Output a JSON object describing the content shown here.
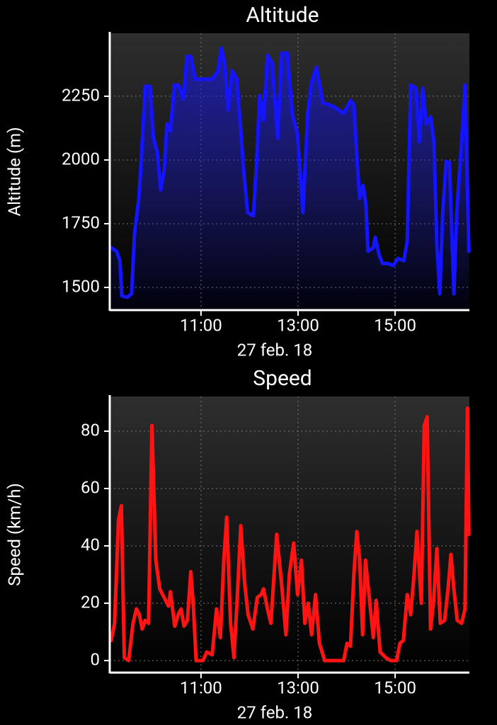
{
  "chart_data": [
    {
      "type": "line",
      "title": "Altitude",
      "ylabel": "Altitude (m)",
      "xlabel": "27 feb. 18",
      "fill": true,
      "grid": true,
      "xlim": [
        9.12,
        16.53
      ],
      "xticks": [
        {
          "value": 11,
          "label": "11:00"
        },
        {
          "value": 13,
          "label": "13:00"
        },
        {
          "value": 15,
          "label": "15:00"
        }
      ],
      "ylim": [
        1411,
        2497
      ],
      "yticks": [
        1500,
        1750,
        2000,
        2250
      ],
      "x": [
        9.15,
        9.26,
        9.33,
        9.37,
        9.48,
        9.57,
        9.63,
        9.72,
        9.77,
        9.85,
        9.95,
        10.02,
        10.1,
        10.17,
        10.24,
        10.3,
        10.37,
        10.45,
        10.53,
        10.64,
        10.71,
        10.79,
        10.88,
        11.23,
        11.35,
        11.42,
        11.49,
        11.56,
        11.64,
        11.74,
        11.88,
        11.96,
        12.08,
        12.14,
        12.21,
        12.29,
        12.37,
        12.47,
        12.58,
        12.66,
        12.78,
        12.88,
        12.99,
        13.1,
        13.2,
        13.28,
        13.38,
        13.51,
        13.72,
        13.94,
        14.08,
        14.15,
        14.22,
        14.27,
        14.34,
        14.4,
        14.44,
        14.55,
        14.59,
        14.67,
        14.74,
        14.85,
        14.96,
        15.06,
        15.18,
        15.25,
        15.32,
        15.43,
        15.5,
        15.57,
        15.64,
        15.73,
        15.8,
        15.86,
        15.92,
        15.98,
        16.05,
        16.12,
        16.21,
        16.27,
        16.37,
        16.44,
        16.52
      ],
      "series": [
        {
          "name": "Altitude",
          "color": "#1414ff",
          "values": [
            1656,
            1642,
            1605,
            1467,
            1461,
            1475,
            1711,
            1850,
            2003,
            2289,
            2289,
            2086,
            2031,
            1883,
            1961,
            2142,
            2114,
            2294,
            2294,
            2239,
            2406,
            2406,
            2317,
            2317,
            2350,
            2439,
            2378,
            2197,
            2350,
            2317,
            1961,
            1794,
            1781,
            1975,
            2253,
            2156,
            2411,
            2378,
            2086,
            2419,
            2419,
            2183,
            2100,
            1794,
            2183,
            2308,
            2364,
            2225,
            2211,
            2183,
            2233,
            2217,
            1989,
            1850,
            1900,
            1822,
            1642,
            1656,
            1697,
            1628,
            1594,
            1594,
            1586,
            1614,
            1605,
            1683,
            2294,
            2281,
            2072,
            2281,
            2142,
            2169,
            2072,
            1669,
            1475,
            1794,
            1995,
            1989,
            1475,
            1794,
            2072,
            2294,
            1642
          ]
        }
      ]
    },
    {
      "type": "line",
      "title": "Speed",
      "ylabel": "Speed (km/h)",
      "xlabel": "27 feb. 18",
      "fill": false,
      "grid": true,
      "xlim": [
        9.12,
        16.53
      ],
      "xticks": [
        {
          "value": 11,
          "label": "11:00"
        },
        {
          "value": 13,
          "label": "13:00"
        },
        {
          "value": 15,
          "label": "15:00"
        }
      ],
      "ylim": [
        -4.2,
        92.1
      ],
      "yticks": [
        0,
        20,
        40,
        60,
        80
      ],
      "x": [
        9.15,
        9.22,
        9.3,
        9.36,
        9.42,
        9.51,
        9.6,
        9.67,
        9.73,
        9.79,
        9.85,
        9.92,
        9.99,
        10.07,
        10.15,
        10.24,
        10.33,
        10.37,
        10.46,
        10.53,
        10.59,
        10.65,
        10.72,
        10.79,
        10.84,
        10.9,
        11.04,
        11.12,
        11.23,
        11.32,
        11.4,
        11.47,
        11.53,
        11.61,
        11.68,
        11.75,
        11.82,
        11.9,
        11.97,
        12.07,
        12.16,
        12.24,
        12.29,
        12.37,
        12.44,
        12.56,
        12.66,
        12.75,
        12.82,
        12.91,
        12.99,
        13.07,
        13.14,
        13.21,
        13.28,
        13.36,
        13.44,
        13.55,
        13.94,
        14.01,
        14.08,
        14.15,
        14.21,
        14.27,
        14.33,
        14.39,
        14.48,
        14.55,
        14.61,
        14.69,
        14.81,
        14.91,
        15.03,
        15.1,
        15.17,
        15.25,
        15.32,
        15.39,
        15.45,
        15.54,
        15.6,
        15.66,
        15.73,
        15.79,
        15.86,
        15.93,
        16.02,
        16.09,
        16.15,
        16.21,
        16.28,
        16.37,
        16.44,
        16.49,
        16.52
      ],
      "series": [
        {
          "name": "Speed",
          "color": "#ff1414",
          "values": [
            7,
            13,
            49,
            54,
            1,
            0,
            13,
            18,
            16,
            11,
            14,
            13,
            82,
            35,
            25,
            22,
            19,
            24,
            12,
            16,
            18,
            12,
            14,
            31,
            20,
            0,
            0,
            3,
            2,
            18,
            8,
            35,
            50,
            13,
            1,
            23,
            47,
            27,
            16,
            11,
            22,
            23,
            25,
            18,
            13,
            44,
            27,
            9,
            30,
            41,
            23,
            35,
            13,
            20,
            9,
            23,
            6,
            0,
            0,
            6,
            5,
            30,
            45,
            35,
            9,
            35,
            20,
            8,
            21,
            3,
            1,
            0,
            0,
            6,
            7,
            23,
            16,
            30,
            45,
            20,
            82,
            85,
            11,
            20,
            39,
            13,
            14,
            25,
            37,
            25,
            14,
            13,
            18,
            88,
            44
          ]
        }
      ]
    }
  ]
}
